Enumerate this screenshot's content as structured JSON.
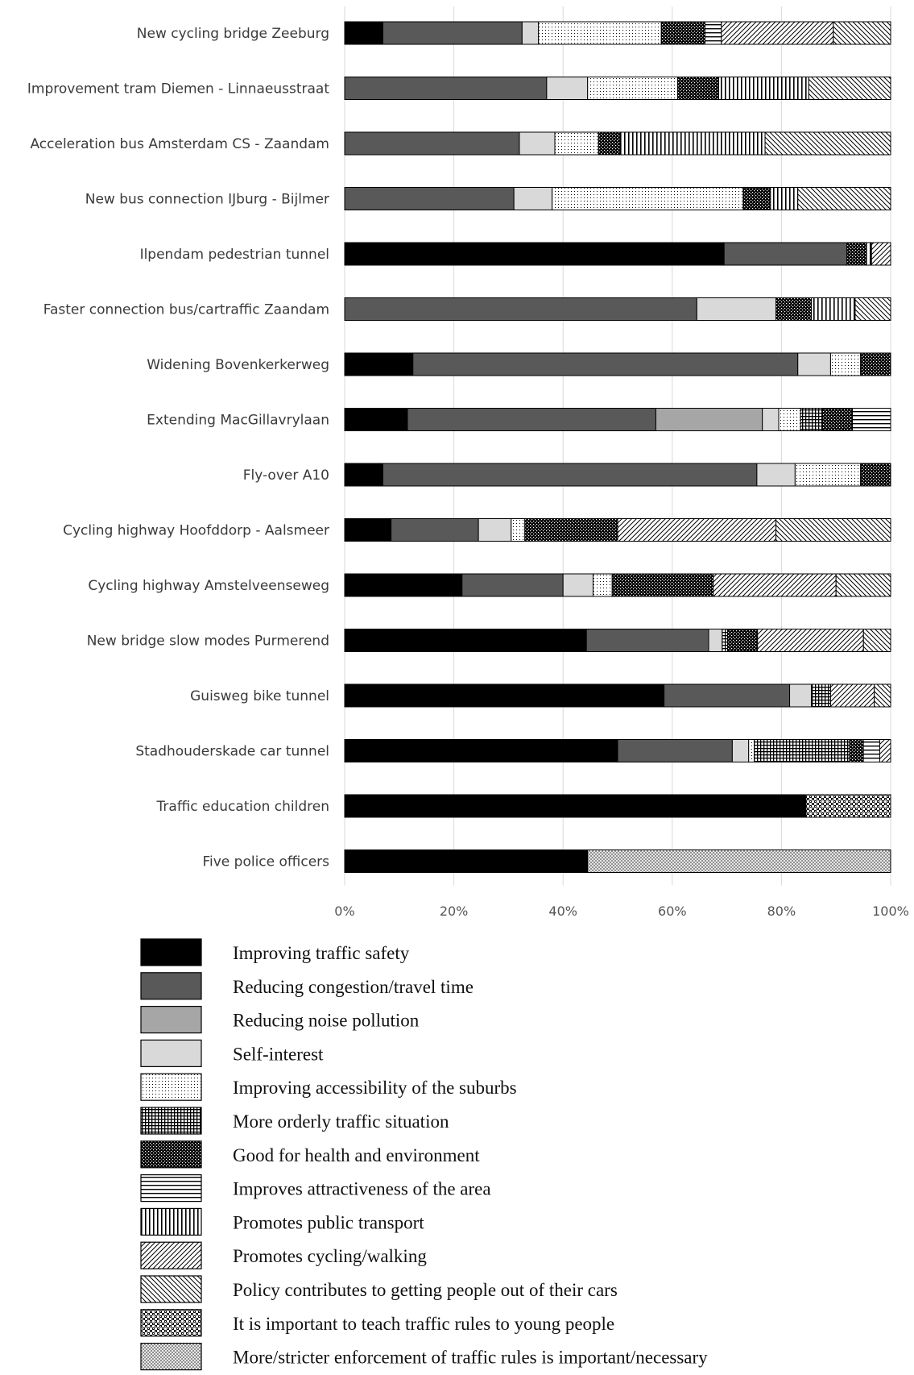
{
  "chart_data": {
    "type": "bar",
    "orientation": "horizontal",
    "stacked": "percent",
    "categories": [
      "New cycling bridge Zeeburg",
      "Improvement tram Diemen - Linnaeusstraat",
      "Acceleration bus Amsterdam CS - Zaandam",
      "New bus connection IJburg - Bijlmer",
      "Ilpendam pedestrian tunnel",
      "Faster connection bus/cartraffic Zaandam",
      "Widening Bovenkerkerweg",
      "Extending MacGillavrylaan",
      "Fly-over A10",
      "Cycling highway Hoofddorp - Aalsmeer",
      "Cycling highway Amstelveenseweg",
      "New bridge slow modes Purmerend",
      "Guisweg bike tunnel",
      "Stadhouderskade car tunnel",
      "Traffic education children",
      "Five police officers"
    ],
    "series": [
      {
        "name": "Improving traffic safety",
        "pattern": "solid-black",
        "values": [
          7,
          0,
          0,
          0,
          69.5,
          0,
          12.5,
          11.5,
          7,
          8.5,
          21.5,
          44.5,
          58.5,
          50,
          84.5,
          44.5
        ]
      },
      {
        "name": "Reducing congestion/travel time",
        "pattern": "solid-dark-gray",
        "values": [
          25.5,
          37,
          32,
          31,
          22.5,
          64.5,
          70.5,
          45.5,
          68.5,
          16,
          18.5,
          22.5,
          23,
          21,
          0,
          0
        ]
      },
      {
        "name": "Reducing noise pollution",
        "pattern": "solid-gray",
        "values": [
          0,
          0,
          0,
          0,
          0,
          0,
          0,
          19.5,
          0,
          0,
          0,
          0,
          0,
          0,
          0,
          0
        ]
      },
      {
        "name": "Self-interest",
        "pattern": "solid-light-gray",
        "values": [
          3,
          7.5,
          6.5,
          7,
          0,
          14.5,
          6,
          3,
          7,
          6,
          5.5,
          2.5,
          4,
          3,
          0,
          0
        ]
      },
      {
        "name": "Improving accessibility of the suburbs",
        "pattern": "dots",
        "values": [
          22.5,
          16.5,
          8,
          35,
          0,
          0,
          5.5,
          4,
          12,
          2.5,
          3.5,
          0,
          0,
          1,
          0,
          0
        ]
      },
      {
        "name": "More orderly traffic situation",
        "pattern": "grid",
        "values": [
          0,
          0,
          0,
          0,
          0,
          0,
          0,
          4,
          0,
          0,
          0,
          1,
          3.5,
          17.5,
          0,
          0
        ]
      },
      {
        "name": "Good for health and environment",
        "pattern": "dense-checker",
        "values": [
          8,
          7.5,
          4,
          5,
          3.5,
          6.5,
          5.5,
          5.5,
          5.5,
          17,
          18.5,
          5.5,
          0,
          2.5,
          0,
          0
        ]
      },
      {
        "name": "Improves attractiveness of the area",
        "pattern": "horizontal-lines",
        "values": [
          3,
          0,
          0,
          0,
          0,
          0,
          0,
          7,
          0,
          0,
          0,
          0,
          0,
          3,
          0,
          0
        ]
      },
      {
        "name": "Promotes public transport",
        "pattern": "vertical-lines",
        "values": [
          0,
          16.5,
          26.5,
          5,
          1,
          8,
          0,
          0,
          0,
          0,
          0,
          0,
          0,
          0,
          0,
          0
        ]
      },
      {
        "name": "Promotes cycling/walking",
        "pattern": "diagonal-up",
        "values": [
          20.5,
          0,
          0,
          0,
          3.5,
          0,
          0,
          0,
          0,
          29,
          22.5,
          19.5,
          8,
          2,
          0,
          0
        ]
      },
      {
        "name": "Policy contributes to getting people out of their cars",
        "pattern": "diagonal-down",
        "values": [
          10.5,
          15,
          23,
          17,
          0,
          6.5,
          0,
          0,
          0,
          21,
          10,
          5,
          3,
          0,
          0,
          0
        ]
      },
      {
        "name": "It is important to teach traffic rules to young people",
        "pattern": "coarse-checker",
        "values": [
          0,
          0,
          0,
          0,
          0,
          0,
          0,
          0,
          0,
          0,
          0,
          0,
          0,
          0,
          15.5,
          0
        ]
      },
      {
        "name": "More/stricter enforcement of traffic rules is important/necessary",
        "pattern": "fine-crosshatch",
        "values": [
          0,
          0,
          0,
          0,
          0,
          0,
          0,
          0,
          0,
          0,
          0,
          0,
          0,
          0,
          0,
          55.5
        ]
      }
    ],
    "xlim": [
      0,
      100
    ],
    "xticks": [
      "0%",
      "20%",
      "40%",
      "60%",
      "80%",
      "100%"
    ],
    "grid": "vertical",
    "legend_position": "bottom",
    "title": "",
    "xlabel": "",
    "ylabel": ""
  }
}
